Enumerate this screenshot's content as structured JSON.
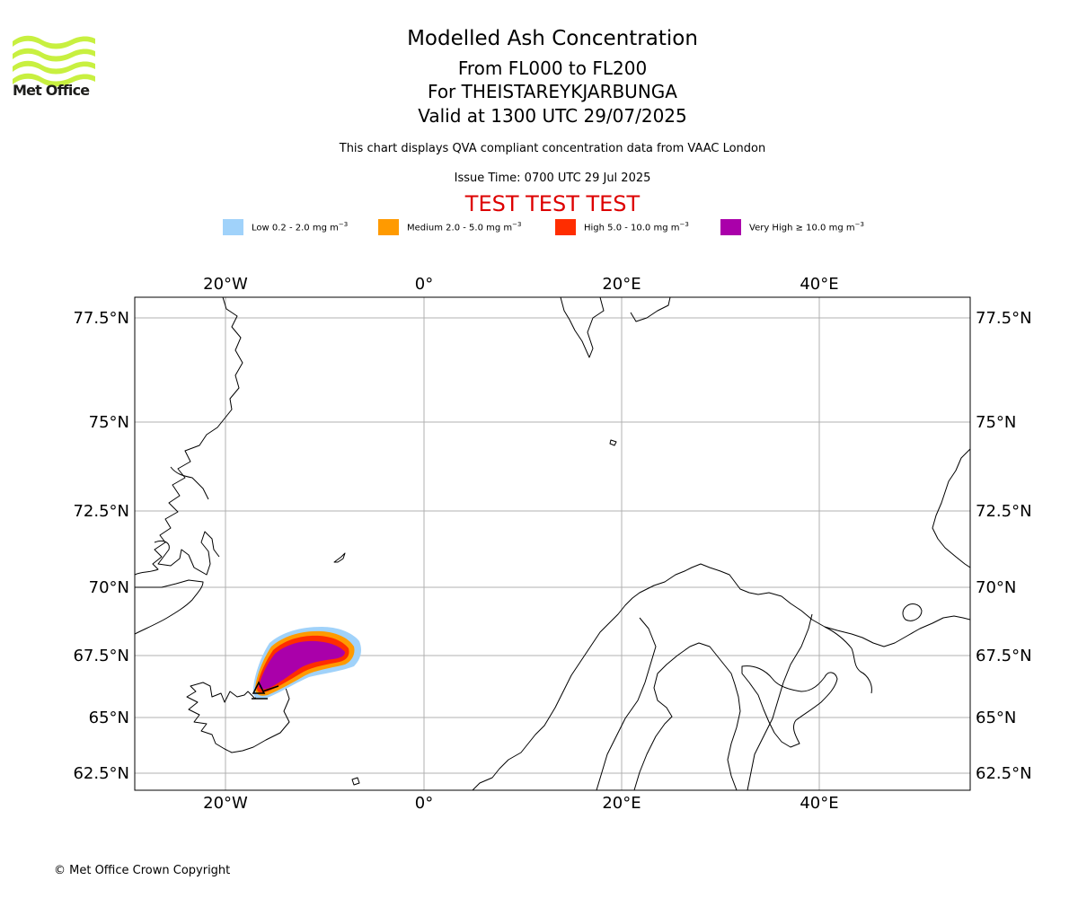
{
  "logo": {
    "text": "Met Office",
    "colors": {
      "waves": "#c8f040",
      "text": "#1d1d1b"
    }
  },
  "header": {
    "title": "Modelled Ash Concentration",
    "levels": "From FL000 to FL200",
    "volcano": "For THEISTAREYKJARBUNGA",
    "valid": "Valid at 1300 UTC 29/07/2025",
    "qva_note": "This chart displays QVA compliant concentration data from VAAC London",
    "issue_time": "Issue Time: 0700 UTC 29 Jul 2025",
    "test_banner": "TEST TEST TEST",
    "test_color": "#dd0000"
  },
  "legend": [
    {
      "name": "Low",
      "text": "Low 0.2 - 2.0 mg m",
      "unit_power": "−3",
      "color": "#a0d2fa"
    },
    {
      "name": "Medium",
      "text": "Medium 2.0 - 5.0 mg m",
      "unit_power": "−3",
      "color": "#ff9a00"
    },
    {
      "name": "High",
      "text": "High 5.0 - 10.0 mg m",
      "unit_power": "−3",
      "color": "#ff2d00"
    },
    {
      "name": "Very High",
      "text": "Very High ≥ 10.0 mg m",
      "unit_power": "−3",
      "color": "#aa00aa"
    }
  ],
  "map": {
    "lon_labels": [
      "20°W",
      "0°",
      "20°E",
      "40°E"
    ],
    "lat_labels": [
      "77.5°N",
      "75°N",
      "72.5°N",
      "70°N",
      "67.5°N",
      "65°N",
      "62.5°N"
    ],
    "gridline_color": "#b0b0b0",
    "coastline_color": "#000000",
    "volcano_marker": "triangle"
  },
  "footer": {
    "copyright": "© Met Office Crown Copyright"
  }
}
